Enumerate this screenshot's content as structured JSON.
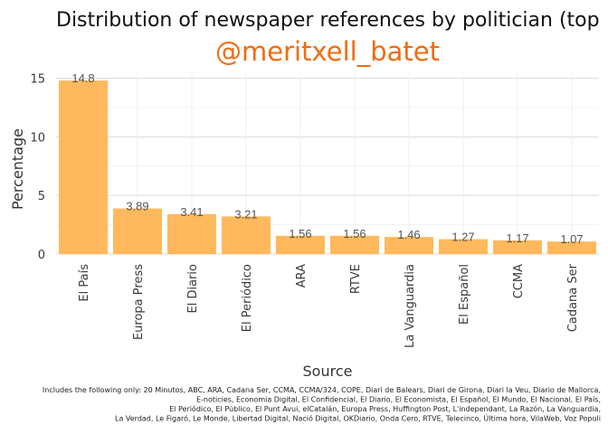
{
  "chart_data": {
    "type": "bar",
    "title": "Distribution of newspaper references by politician (top",
    "subtitle": "@meritxell_batet",
    "xlabel": "Source",
    "ylabel": "Percentage",
    "categories": [
      "El País",
      "Europa Press",
      "El Diario",
      "El Periódico",
      "ARA",
      "RTVE",
      "La Vanguardia",
      "El Español",
      "CCMA",
      "Cadana Ser"
    ],
    "values": [
      14.8,
      3.89,
      3.41,
      3.21,
      1.56,
      1.56,
      1.46,
      1.27,
      1.17,
      1.07
    ],
    "value_labels": [
      "14.8",
      "3.89",
      "3.41",
      "3.21",
      "1.56",
      "1.56",
      "1.46",
      "1.27",
      "1.17",
      "1.07"
    ],
    "ylim": [
      0,
      15.5
    ],
    "yticks": [
      0,
      5,
      10,
      15
    ],
    "grid": true,
    "legend": "none",
    "bar_color": "#FFB95C",
    "subtitle_color": "#F26B0F",
    "caption": [
      "Includes the following only: 20 Minutos, ABC, ARA, Cadana Ser, CCMA, CCMA/324, COPE, Diari de Balears, Diari de Girona, Diari la Veu, Diario de Mallorca,",
      "E-noticies, Economia Digital, El Confidencial, El Diario, El Economista, El Español, El Mundo, El Nacional, El País,",
      "El Periódico, El Público, El Punt Avui, elCatalán, Europa Press, Huffington Post, L'independant, La Razón, La Vanguardia,",
      "La Verdad, Le Figaró, Le Monde, Libertad Digital, Nació Digital, OKDiario, Onda Cero, RTVE, Telecinco, Última hora, VilaWeb, Voz Populi"
    ]
  }
}
